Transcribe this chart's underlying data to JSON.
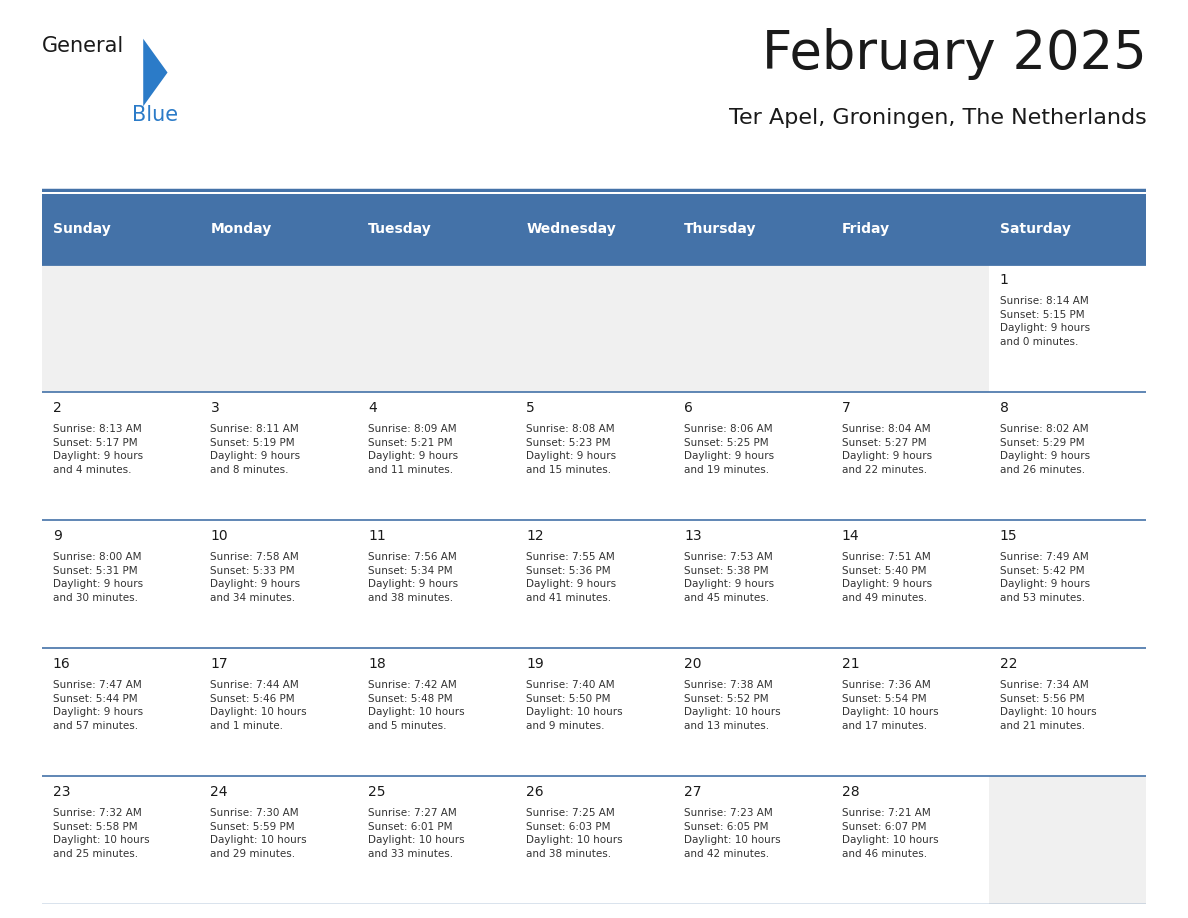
{
  "title": "February 2025",
  "subtitle": "Ter Apel, Groningen, The Netherlands",
  "header_bg_color": "#4472a8",
  "header_text_color": "#ffffff",
  "days_of_week": [
    "Sunday",
    "Monday",
    "Tuesday",
    "Wednesday",
    "Thursday",
    "Friday",
    "Saturday"
  ],
  "row_bg_white": "#ffffff",
  "row_bg_light": "#f0f0f0",
  "cell_border_color": "#4472a8",
  "day_num_color": "#1a1a1a",
  "info_text_color": "#333333",
  "separator_color": "#4472a8",
  "calendar_data": [
    [
      null,
      null,
      null,
      null,
      null,
      null,
      {
        "day": 1,
        "sunrise": "8:14 AM",
        "sunset": "5:15 PM",
        "daylight": "9 hours\nand 0 minutes."
      }
    ],
    [
      {
        "day": 2,
        "sunrise": "8:13 AM",
        "sunset": "5:17 PM",
        "daylight": "9 hours\nand 4 minutes."
      },
      {
        "day": 3,
        "sunrise": "8:11 AM",
        "sunset": "5:19 PM",
        "daylight": "9 hours\nand 8 minutes."
      },
      {
        "day": 4,
        "sunrise": "8:09 AM",
        "sunset": "5:21 PM",
        "daylight": "9 hours\nand 11 minutes."
      },
      {
        "day": 5,
        "sunrise": "8:08 AM",
        "sunset": "5:23 PM",
        "daylight": "9 hours\nand 15 minutes."
      },
      {
        "day": 6,
        "sunrise": "8:06 AM",
        "sunset": "5:25 PM",
        "daylight": "9 hours\nand 19 minutes."
      },
      {
        "day": 7,
        "sunrise": "8:04 AM",
        "sunset": "5:27 PM",
        "daylight": "9 hours\nand 22 minutes."
      },
      {
        "day": 8,
        "sunrise": "8:02 AM",
        "sunset": "5:29 PM",
        "daylight": "9 hours\nand 26 minutes."
      }
    ],
    [
      {
        "day": 9,
        "sunrise": "8:00 AM",
        "sunset": "5:31 PM",
        "daylight": "9 hours\nand 30 minutes."
      },
      {
        "day": 10,
        "sunrise": "7:58 AM",
        "sunset": "5:33 PM",
        "daylight": "9 hours\nand 34 minutes."
      },
      {
        "day": 11,
        "sunrise": "7:56 AM",
        "sunset": "5:34 PM",
        "daylight": "9 hours\nand 38 minutes."
      },
      {
        "day": 12,
        "sunrise": "7:55 AM",
        "sunset": "5:36 PM",
        "daylight": "9 hours\nand 41 minutes."
      },
      {
        "day": 13,
        "sunrise": "7:53 AM",
        "sunset": "5:38 PM",
        "daylight": "9 hours\nand 45 minutes."
      },
      {
        "day": 14,
        "sunrise": "7:51 AM",
        "sunset": "5:40 PM",
        "daylight": "9 hours\nand 49 minutes."
      },
      {
        "day": 15,
        "sunrise": "7:49 AM",
        "sunset": "5:42 PM",
        "daylight": "9 hours\nand 53 minutes."
      }
    ],
    [
      {
        "day": 16,
        "sunrise": "7:47 AM",
        "sunset": "5:44 PM",
        "daylight": "9 hours\nand 57 minutes."
      },
      {
        "day": 17,
        "sunrise": "7:44 AM",
        "sunset": "5:46 PM",
        "daylight": "10 hours\nand 1 minute."
      },
      {
        "day": 18,
        "sunrise": "7:42 AM",
        "sunset": "5:48 PM",
        "daylight": "10 hours\nand 5 minutes."
      },
      {
        "day": 19,
        "sunrise": "7:40 AM",
        "sunset": "5:50 PM",
        "daylight": "10 hours\nand 9 minutes."
      },
      {
        "day": 20,
        "sunrise": "7:38 AM",
        "sunset": "5:52 PM",
        "daylight": "10 hours\nand 13 minutes."
      },
      {
        "day": 21,
        "sunrise": "7:36 AM",
        "sunset": "5:54 PM",
        "daylight": "10 hours\nand 17 minutes."
      },
      {
        "day": 22,
        "sunrise": "7:34 AM",
        "sunset": "5:56 PM",
        "daylight": "10 hours\nand 21 minutes."
      }
    ],
    [
      {
        "day": 23,
        "sunrise": "7:32 AM",
        "sunset": "5:58 PM",
        "daylight": "10 hours\nand 25 minutes."
      },
      {
        "day": 24,
        "sunrise": "7:30 AM",
        "sunset": "5:59 PM",
        "daylight": "10 hours\nand 29 minutes."
      },
      {
        "day": 25,
        "sunrise": "7:27 AM",
        "sunset": "6:01 PM",
        "daylight": "10 hours\nand 33 minutes."
      },
      {
        "day": 26,
        "sunrise": "7:25 AM",
        "sunset": "6:03 PM",
        "daylight": "10 hours\nand 38 minutes."
      },
      {
        "day": 27,
        "sunrise": "7:23 AM",
        "sunset": "6:05 PM",
        "daylight": "10 hours\nand 42 minutes."
      },
      {
        "day": 28,
        "sunrise": "7:21 AM",
        "sunset": "6:07 PM",
        "daylight": "10 hours\nand 46 minutes."
      },
      null
    ]
  ],
  "logo_general_color": "#1a1a1a",
  "logo_blue_color": "#2b7bc8",
  "logo_triangle_color": "#2b7bc8"
}
